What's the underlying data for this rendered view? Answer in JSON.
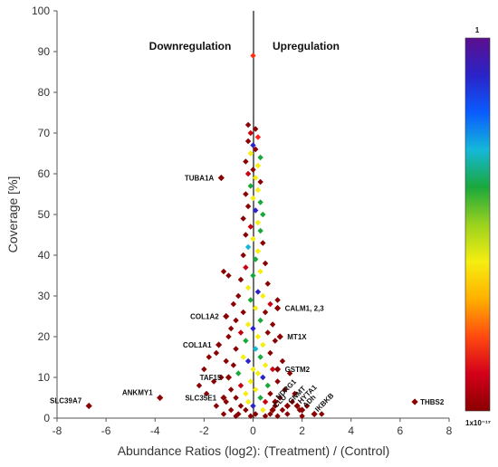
{
  "chart_data": {
    "type": "scatter",
    "title": "",
    "xlabel": "Abundance Ratios (log2): (Treatment) / (Control)",
    "ylabel": "Coverage [%]",
    "xlim": [
      -8,
      8
    ],
    "ylim": [
      0,
      100
    ],
    "x_ticks": [
      "-8",
      "-6",
      "-4",
      "-2",
      "0",
      "2",
      "4",
      "6",
      "8"
    ],
    "y_ticks": [
      "0",
      "10",
      "20",
      "30",
      "40",
      "50",
      "60",
      "70",
      "80",
      "90",
      "100"
    ],
    "grid": false,
    "region_labels": {
      "left": "Downregulation",
      "right": "Upregulation"
    },
    "colorbar": {
      "top_label": "1",
      "bottom_label": "1x10⁻¹⁷",
      "stops": [
        "#5b0f8e",
        "#2a23c8",
        "#0a5cff",
        "#14b8d8",
        "#1aa83c",
        "#9bd21e",
        "#f5ee10",
        "#ffb000",
        "#ff4a10",
        "#d4001a",
        "#8a0000"
      ]
    },
    "highlighted": [
      {
        "label": "TUBA1A",
        "x": -1.3,
        "y": 59,
        "color": "#8b0000"
      },
      {
        "label": "COL1A2",
        "x": -1.1,
        "y": 25,
        "color": "#8b0000"
      },
      {
        "label": "COL1A1",
        "x": -1.4,
        "y": 18,
        "color": "#8b0000"
      },
      {
        "label": "TAF15",
        "x": -1.0,
        "y": 10,
        "color": "#8b0000"
      },
      {
        "label": "SLC35E1",
        "x": -1.2,
        "y": 5,
        "color": "#8b0000"
      },
      {
        "label": "ANKMY1",
        "x": -3.8,
        "y": 5,
        "color": "#8b0000"
      },
      {
        "label": "SLC39A7",
        "x": -6.7,
        "y": 3,
        "color": "#8b0000"
      },
      {
        "label": "CALM1, 2,3",
        "x": 1.0,
        "y": 27,
        "color": "#8b0000"
      },
      {
        "label": "MT1X",
        "x": 1.1,
        "y": 20,
        "color": "#8b0000"
      },
      {
        "label": "GSTM2",
        "x": 1.0,
        "y": 12,
        "color": "#8b0000"
      },
      {
        "label": "NDRG1",
        "x": 0.9,
        "y": 4,
        "color": "#8b0000"
      },
      {
        "label": "GNMT",
        "x": 1.4,
        "y": 3,
        "color": "#8b0000"
      },
      {
        "label": "CLU",
        "x": 0.8,
        "y": 2,
        "color": "#8b0000"
      },
      {
        "label": "HYTA1",
        "x": 1.8,
        "y": 3,
        "color": "#8b0000"
      },
      {
        "label": "ADh",
        "x": 2.0,
        "y": 2,
        "color": "#8b0000"
      },
      {
        "label": "IKBKB",
        "x": 2.5,
        "y": 1,
        "color": "#8b0000"
      },
      {
        "label": "THBS2",
        "x": 6.6,
        "y": 4,
        "color": "#8b0000"
      }
    ],
    "series": [
      {
        "values": [
          {
            "x": 0.0,
            "y": 89,
            "color": "#ff3010"
          },
          {
            "x": -0.2,
            "y": 72,
            "color": "#8b0000"
          },
          {
            "x": 0.1,
            "y": 71,
            "color": "#8b0000"
          },
          {
            "x": -0.1,
            "y": 70,
            "color": "#c80010"
          },
          {
            "x": 0.2,
            "y": 69,
            "color": "#ff2020"
          },
          {
            "x": -0.2,
            "y": 68,
            "color": "#8b0000"
          },
          {
            "x": 0.0,
            "y": 67,
            "color": "#2a23c8"
          },
          {
            "x": 0.1,
            "y": 66,
            "color": "#8b0000"
          },
          {
            "x": -0.1,
            "y": 65,
            "color": "#f5ee10"
          },
          {
            "x": 0.3,
            "y": 64,
            "color": "#1aa83c"
          },
          {
            "x": -0.3,
            "y": 63,
            "color": "#8b0000"
          },
          {
            "x": 0.2,
            "y": 62,
            "color": "#f5ee10"
          },
          {
            "x": 0.0,
            "y": 61,
            "color": "#8b0000"
          },
          {
            "x": -0.2,
            "y": 60,
            "color": "#c80010"
          },
          {
            "x": 0.1,
            "y": 59,
            "color": "#f5ee10"
          },
          {
            "x": 0.3,
            "y": 58,
            "color": "#8b0000"
          },
          {
            "x": -0.1,
            "y": 57,
            "color": "#1aa83c"
          },
          {
            "x": 0.2,
            "y": 56,
            "color": "#f5ee10"
          },
          {
            "x": -0.3,
            "y": 55,
            "color": "#8b0000"
          },
          {
            "x": 0.0,
            "y": 54,
            "color": "#f5ee10"
          },
          {
            "x": 0.3,
            "y": 53,
            "color": "#1aa83c"
          },
          {
            "x": -0.2,
            "y": 52,
            "color": "#8b0000"
          },
          {
            "x": 0.1,
            "y": 51,
            "color": "#2a23c8"
          },
          {
            "x": 0.4,
            "y": 50,
            "color": "#1aa83c"
          },
          {
            "x": -0.4,
            "y": 49,
            "color": "#8b0000"
          },
          {
            "x": 0.2,
            "y": 48,
            "color": "#f5ee10"
          },
          {
            "x": -0.1,
            "y": 47,
            "color": "#c80010"
          },
          {
            "x": 0.3,
            "y": 46,
            "color": "#1aa83c"
          },
          {
            "x": -0.3,
            "y": 45,
            "color": "#8b0000"
          },
          {
            "x": 0.0,
            "y": 44,
            "color": "#f5ee10"
          },
          {
            "x": 0.4,
            "y": 43,
            "color": "#8b0000"
          },
          {
            "x": -0.2,
            "y": 42,
            "color": "#14b8d8"
          },
          {
            "x": 0.2,
            "y": 41,
            "color": "#f5ee10"
          },
          {
            "x": -0.4,
            "y": 40,
            "color": "#8b0000"
          },
          {
            "x": 0.1,
            "y": 39,
            "color": "#1aa83c"
          },
          {
            "x": 0.5,
            "y": 38,
            "color": "#8b0000"
          },
          {
            "x": -0.3,
            "y": 37,
            "color": "#c80010"
          },
          {
            "x": 0.3,
            "y": 36,
            "color": "#f5ee10"
          },
          {
            "x": -1.2,
            "y": 36,
            "color": "#8b0000"
          },
          {
            "x": -1.0,
            "y": 35,
            "color": "#8b0000"
          },
          {
            "x": 0.0,
            "y": 35,
            "color": "#1aa83c"
          },
          {
            "x": -0.5,
            "y": 34,
            "color": "#8b0000"
          },
          {
            "x": 0.6,
            "y": 33,
            "color": "#8b0000"
          },
          {
            "x": -0.2,
            "y": 32,
            "color": "#f5ee10"
          },
          {
            "x": 0.2,
            "y": 31,
            "color": "#2a23c8"
          },
          {
            "x": -0.6,
            "y": 30,
            "color": "#8b0000"
          },
          {
            "x": 0.4,
            "y": 30,
            "color": "#f5ee10"
          },
          {
            "x": 1.0,
            "y": 29,
            "color": "#8b0000"
          },
          {
            "x": -0.1,
            "y": 29,
            "color": "#1aa83c"
          },
          {
            "x": -0.8,
            "y": 28,
            "color": "#8b0000"
          },
          {
            "x": 0.7,
            "y": 28,
            "color": "#c80010"
          },
          {
            "x": 0.1,
            "y": 27,
            "color": "#f5ee10"
          },
          {
            "x": -0.4,
            "y": 26,
            "color": "#8b0000"
          },
          {
            "x": 0.5,
            "y": 26,
            "color": "#8b0000"
          },
          {
            "x": -0.7,
            "y": 24,
            "color": "#8b0000"
          },
          {
            "x": 0.3,
            "y": 24,
            "color": "#1aa83c"
          },
          {
            "x": -0.2,
            "y": 23,
            "color": "#f5ee10"
          },
          {
            "x": 0.8,
            "y": 23,
            "color": "#8b0000"
          },
          {
            "x": -0.9,
            "y": 22,
            "color": "#8b0000"
          },
          {
            "x": 0.0,
            "y": 22,
            "color": "#2a23c8"
          },
          {
            "x": 0.6,
            "y": 21,
            "color": "#8b0000"
          },
          {
            "x": -0.5,
            "y": 21,
            "color": "#c80010"
          },
          {
            "x": 0.2,
            "y": 20,
            "color": "#f5ee10"
          },
          {
            "x": -1.0,
            "y": 20,
            "color": "#8b0000"
          },
          {
            "x": -0.3,
            "y": 19,
            "color": "#1aa83c"
          },
          {
            "x": 0.9,
            "y": 19,
            "color": "#8b0000"
          },
          {
            "x": 0.4,
            "y": 18,
            "color": "#f5ee10"
          },
          {
            "x": -0.7,
            "y": 17,
            "color": "#8b0000"
          },
          {
            "x": 0.1,
            "y": 17,
            "color": "#14b8d8"
          },
          {
            "x": -1.5,
            "y": 16,
            "color": "#8b0000"
          },
          {
            "x": 0.7,
            "y": 16,
            "color": "#8b0000"
          },
          {
            "x": -0.4,
            "y": 15,
            "color": "#f5ee10"
          },
          {
            "x": -1.8,
            "y": 15,
            "color": "#8b0000"
          },
          {
            "x": 0.3,
            "y": 15,
            "color": "#1aa83c"
          },
          {
            "x": -1.1,
            "y": 14,
            "color": "#8b0000"
          },
          {
            "x": 1.2,
            "y": 14,
            "color": "#8b0000"
          },
          {
            "x": -0.2,
            "y": 14,
            "color": "#2a23c8"
          },
          {
            "x": 0.5,
            "y": 13,
            "color": "#f5ee10"
          },
          {
            "x": -0.8,
            "y": 13,
            "color": "#8b0000"
          },
          {
            "x": -2.0,
            "y": 12,
            "color": "#8b0000"
          },
          {
            "x": 0.0,
            "y": 12,
            "color": "#f5ee10"
          },
          {
            "x": 0.8,
            "y": 12,
            "color": "#c80010"
          },
          {
            "x": -0.6,
            "y": 11,
            "color": "#1aa83c"
          },
          {
            "x": 1.5,
            "y": 11,
            "color": "#8b0000"
          },
          {
            "x": 0.2,
            "y": 11,
            "color": "#f5ee10"
          },
          {
            "x": -1.3,
            "y": 10,
            "color": "#8b0000"
          },
          {
            "x": 0.4,
            "y": 10,
            "color": "#2a23c8"
          },
          {
            "x": -0.1,
            "y": 9,
            "color": "#f5ee10"
          },
          {
            "x": 1.0,
            "y": 9,
            "color": "#8b0000"
          },
          {
            "x": -1.6,
            "y": 9,
            "color": "#8b0000"
          },
          {
            "x": 0.6,
            "y": 8,
            "color": "#1aa83c"
          },
          {
            "x": -0.5,
            "y": 8,
            "color": "#c80010"
          },
          {
            "x": -2.2,
            "y": 8,
            "color": "#8b0000"
          },
          {
            "x": 0.1,
            "y": 7,
            "color": "#f5ee10"
          },
          {
            "x": 1.3,
            "y": 7,
            "color": "#8b0000"
          },
          {
            "x": -0.9,
            "y": 7,
            "color": "#8b0000"
          },
          {
            "x": -0.3,
            "y": 6,
            "color": "#f5ee10"
          },
          {
            "x": 0.7,
            "y": 6,
            "color": "#8b0000"
          },
          {
            "x": 1.7,
            "y": 6,
            "color": "#8b0000"
          },
          {
            "x": -1.9,
            "y": 6,
            "color": "#8b0000"
          },
          {
            "x": 0.3,
            "y": 5,
            "color": "#1aa83c"
          },
          {
            "x": -0.7,
            "y": 5,
            "color": "#8b0000"
          },
          {
            "x": 1.1,
            "y": 5,
            "color": "#8b0000"
          },
          {
            "x": -0.2,
            "y": 4,
            "color": "#f5ee10"
          },
          {
            "x": 0.5,
            "y": 4,
            "color": "#c80010"
          },
          {
            "x": -1.1,
            "y": 4,
            "color": "#8b0000"
          },
          {
            "x": 1.6,
            "y": 4,
            "color": "#8b0000"
          },
          {
            "x": 0.0,
            "y": 3,
            "color": "#2a23c8"
          },
          {
            "x": -0.5,
            "y": 3,
            "color": "#8b0000"
          },
          {
            "x": 0.9,
            "y": 3,
            "color": "#8b0000"
          },
          {
            "x": 2.2,
            "y": 3,
            "color": "#8b0000"
          },
          {
            "x": -1.5,
            "y": 3,
            "color": "#8b0000"
          },
          {
            "x": 0.4,
            "y": 2,
            "color": "#f5ee10"
          },
          {
            "x": -0.3,
            "y": 2,
            "color": "#8b0000"
          },
          {
            "x": 1.2,
            "y": 2,
            "color": "#8b0000"
          },
          {
            "x": -0.9,
            "y": 2,
            "color": "#8b0000"
          },
          {
            "x": 1.9,
            "y": 2,
            "color": "#8b0000"
          },
          {
            "x": 0.1,
            "y": 1,
            "color": "#8b0000"
          },
          {
            "x": -0.6,
            "y": 1,
            "color": "#8b0000"
          },
          {
            "x": 0.7,
            "y": 1,
            "color": "#8b0000"
          },
          {
            "x": 1.4,
            "y": 1,
            "color": "#8b0000"
          },
          {
            "x": -1.2,
            "y": 1,
            "color": "#8b0000"
          },
          {
            "x": 2.8,
            "y": 1,
            "color": "#8b0000"
          },
          {
            "x": -0.1,
            "y": 0.5,
            "color": "#8b0000"
          },
          {
            "x": 0.5,
            "y": 0.5,
            "color": "#8b0000"
          },
          {
            "x": 1.0,
            "y": 0.5,
            "color": "#8b0000"
          },
          {
            "x": -0.7,
            "y": 0.5,
            "color": "#8b0000"
          },
          {
            "x": 2.0,
            "y": 0.5,
            "color": "#8b0000"
          }
        ]
      }
    ]
  }
}
